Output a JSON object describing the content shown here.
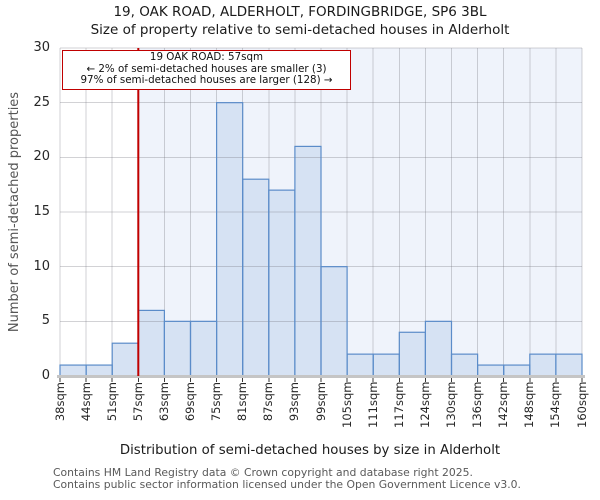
{
  "title": "19, OAK ROAD, ALDERHOLT, FORDINGBRIDGE, SP6 3BL",
  "subtitle": "Size of property relative to semi-detached houses in Alderholt",
  "annotation": {
    "line1": "19 OAK ROAD: 57sqm",
    "line2": "← 2% of semi-detached houses are smaller (3)",
    "line3": "97% of semi-detached houses are larger (128) →"
  },
  "chart_data": {
    "type": "bar",
    "title": "19, OAK ROAD, ALDERHOLT, FORDINGBRIDGE, SP6 3BL — Size of property relative to semi-detached houses in Alderholt",
    "xlabel": "Distribution of semi-detached houses by size in Alderholt",
    "ylabel": "Number of semi-detached properties",
    "bin_edge_labels": [
      "38sqm",
      "44sqm",
      "51sqm",
      "57sqm",
      "63sqm",
      "69sqm",
      "75sqm",
      "81sqm",
      "87sqm",
      "93sqm",
      "99sqm",
      "105sqm",
      "111sqm",
      "117sqm",
      "124sqm",
      "130sqm",
      "136sqm",
      "142sqm",
      "148sqm",
      "154sqm",
      "160sqm"
    ],
    "values": [
      1,
      1,
      3,
      6,
      5,
      5,
      25,
      18,
      17,
      21,
      10,
      2,
      2,
      4,
      5,
      2,
      1,
      1,
      2,
      2
    ],
    "y_ticks": [
      0,
      5,
      10,
      15,
      20,
      25,
      30
    ],
    "ylim": [
      0,
      30
    ],
    "grid": true,
    "marker": {
      "label": "57sqm",
      "bin_edge_index": 3
    },
    "colors": {
      "bar_fill": "#d6e2f3",
      "bar_edge": "#5b8cc9",
      "shade_region": "#eff3fb",
      "grid_rgba": "rgba(115,115,125,0.32)",
      "marker_red": "#c00000",
      "axis_line": "#c5c5c5",
      "tick_mark": "#3a3a3a"
    }
  },
  "footer": {
    "line1": "Contains HM Land Registry data © Crown copyright and database right 2025.",
    "line2": "Contains public sector information licensed under the Open Government Licence v3.0."
  }
}
